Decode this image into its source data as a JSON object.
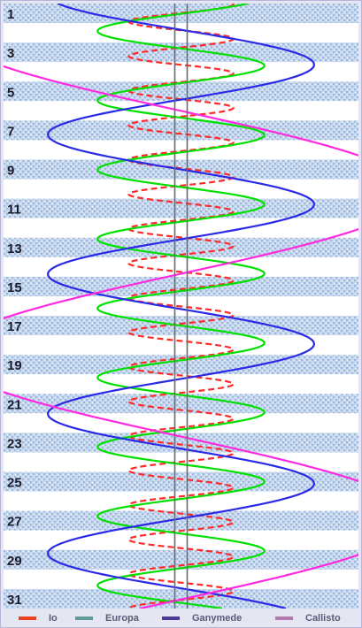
{
  "chart_data": {
    "type": "line",
    "y_axis": {
      "labels": [
        "1",
        "3",
        "5",
        "7",
        "9",
        "11",
        "13",
        "15",
        "17",
        "19",
        "21",
        "23",
        "25",
        "27",
        "29",
        "31"
      ],
      "range": [
        0.5,
        31.5
      ],
      "direction": "downward"
    },
    "x_axis": {
      "range": [
        -20,
        20
      ],
      "center_lines": true
    },
    "grid": "alternating striped day bands",
    "legend_position": "bottom",
    "series": [
      {
        "name": "Io",
        "color": "#ff2a2a",
        "amplitude": 5.9,
        "period_days": 1.769,
        "phase_day": 0.1,
        "dash": "7,4"
      },
      {
        "name": "Europa",
        "color": "#00e000",
        "amplitude": 9.4,
        "period_days": 3.551,
        "phase_day": 2.8,
        "dash": ""
      },
      {
        "name": "Ganymede",
        "color": "#2a2ae6",
        "amplitude": 15.0,
        "period_days": 7.155,
        "phase_day": 9.0,
        "dash": ""
      },
      {
        "name": "Callisto",
        "color": "#ff2ae0",
        "amplitude": 26.4,
        "period_days": 16.689,
        "phase_day": 6.0,
        "dash": ""
      }
    ]
  },
  "legend": [
    {
      "label": "Io",
      "swatch": "#e8421e"
    },
    {
      "label": "Europa",
      "swatch": "#5e9a9a"
    },
    {
      "label": "Ganymede",
      "swatch": "#4a3a9a"
    },
    {
      "label": "Callisto",
      "swatch": "#b07aae"
    }
  ],
  "colors": {
    "stripe": "#aec6e6",
    "stripe_light": "#d6e2f2",
    "center_line": "#6a6a6a",
    "label": "#1a1a2a",
    "frame": "#e6e6f2"
  }
}
